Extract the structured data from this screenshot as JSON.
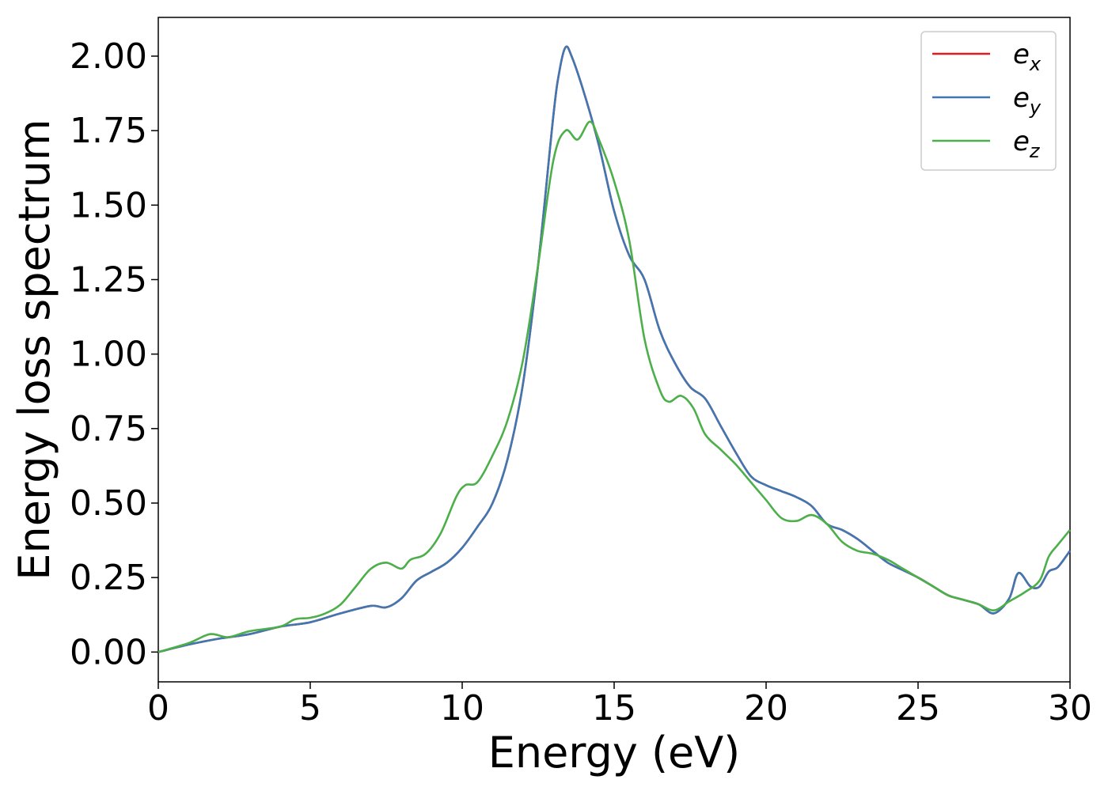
{
  "chart_data": {
    "type": "line",
    "title": "",
    "xlabel": "Energy (eV)",
    "ylabel": "Energy loss spectrum",
    "xlim": [
      0,
      30
    ],
    "ylim": [
      -0.1,
      2.13
    ],
    "xticks": [
      0,
      5,
      10,
      15,
      20,
      25,
      30
    ],
    "yticks": [
      "0.00",
      "0.25",
      "0.50",
      "0.75",
      "1.00",
      "1.25",
      "1.50",
      "1.75",
      "2.00"
    ],
    "grid": false,
    "legend_position": "top-right",
    "series": [
      {
        "name": "e",
        "subscript": "x",
        "color": "#e41a1c",
        "x": [
          0,
          1,
          2,
          3,
          4,
          5,
          6,
          7,
          7.5,
          8,
          8.5,
          9,
          9.5,
          10,
          10.5,
          11,
          11.5,
          12,
          12.5,
          13,
          13.2,
          13.4,
          13.6,
          14,
          14.5,
          15,
          15.5,
          16,
          16.5,
          17,
          17.5,
          18,
          18.5,
          19,
          19.5,
          20,
          20.5,
          21,
          21.5,
          22,
          22.5,
          23,
          23.5,
          24,
          24.5,
          25,
          25.5,
          26,
          26.5,
          27,
          27.5,
          28,
          28.3,
          28.7,
          29,
          29.3,
          29.6,
          30
        ],
        "y": [
          0,
          0.025,
          0.045,
          0.06,
          0.085,
          0.1,
          0.13,
          0.155,
          0.15,
          0.18,
          0.24,
          0.27,
          0.3,
          0.35,
          0.42,
          0.5,
          0.65,
          0.9,
          1.3,
          1.8,
          1.95,
          2.03,
          2.0,
          1.88,
          1.7,
          1.48,
          1.33,
          1.25,
          1.08,
          0.97,
          0.89,
          0.85,
          0.76,
          0.67,
          0.59,
          0.56,
          0.54,
          0.52,
          0.49,
          0.43,
          0.41,
          0.38,
          0.34,
          0.3,
          0.275,
          0.25,
          0.22,
          0.19,
          0.175,
          0.16,
          0.13,
          0.18,
          0.265,
          0.22,
          0.22,
          0.27,
          0.285,
          0.34
        ]
      },
      {
        "name": "e",
        "subscript": "y",
        "color": "#3f77b2",
        "x": [
          0,
          1,
          2,
          3,
          4,
          5,
          6,
          7,
          7.5,
          8,
          8.5,
          9,
          9.5,
          10,
          10.5,
          11,
          11.5,
          12,
          12.5,
          13,
          13.2,
          13.4,
          13.6,
          14,
          14.5,
          15,
          15.5,
          16,
          16.5,
          17,
          17.5,
          18,
          18.5,
          19,
          19.5,
          20,
          20.5,
          21,
          21.5,
          22,
          22.5,
          23,
          23.5,
          24,
          24.5,
          25,
          25.5,
          26,
          26.5,
          27,
          27.5,
          28,
          28.3,
          28.7,
          29,
          29.3,
          29.6,
          30
        ],
        "y": [
          0,
          0.025,
          0.045,
          0.06,
          0.085,
          0.1,
          0.13,
          0.155,
          0.15,
          0.18,
          0.24,
          0.27,
          0.3,
          0.35,
          0.42,
          0.5,
          0.65,
          0.9,
          1.3,
          1.8,
          1.95,
          2.03,
          2.0,
          1.88,
          1.7,
          1.48,
          1.33,
          1.25,
          1.08,
          0.97,
          0.89,
          0.85,
          0.76,
          0.67,
          0.59,
          0.56,
          0.54,
          0.52,
          0.49,
          0.43,
          0.41,
          0.38,
          0.34,
          0.3,
          0.275,
          0.25,
          0.22,
          0.19,
          0.175,
          0.16,
          0.13,
          0.18,
          0.265,
          0.22,
          0.22,
          0.27,
          0.285,
          0.34
        ]
      },
      {
        "name": "e",
        "subscript": "z",
        "color": "#4daf4a",
        "x": [
          0,
          1,
          1.7,
          2.3,
          3,
          4,
          4.5,
          5,
          5.5,
          6,
          6.5,
          7,
          7.5,
          8,
          8.3,
          8.8,
          9.3,
          9.8,
          10.1,
          10.5,
          11,
          11.5,
          12,
          12.5,
          13,
          13.4,
          13.8,
          14.2,
          14.5,
          15,
          15.5,
          16,
          16.5,
          16.8,
          17.2,
          17.6,
          18,
          18.5,
          19,
          19.5,
          20,
          20.5,
          21,
          21.5,
          22,
          22.5,
          23,
          23.5,
          24,
          24.5,
          25,
          25.5,
          26,
          26.5,
          27,
          27.5,
          28,
          28.5,
          29,
          29.3,
          29.6,
          30
        ],
        "y": [
          0,
          0.03,
          0.06,
          0.05,
          0.07,
          0.085,
          0.11,
          0.115,
          0.13,
          0.16,
          0.22,
          0.28,
          0.3,
          0.28,
          0.31,
          0.33,
          0.4,
          0.52,
          0.56,
          0.57,
          0.66,
          0.78,
          0.98,
          1.3,
          1.65,
          1.75,
          1.72,
          1.78,
          1.72,
          1.58,
          1.38,
          1.05,
          0.88,
          0.84,
          0.86,
          0.82,
          0.73,
          0.68,
          0.63,
          0.57,
          0.51,
          0.45,
          0.44,
          0.46,
          0.43,
          0.37,
          0.34,
          0.33,
          0.31,
          0.28,
          0.25,
          0.22,
          0.19,
          0.175,
          0.16,
          0.14,
          0.17,
          0.2,
          0.24,
          0.32,
          0.36,
          0.41
        ]
      }
    ]
  }
}
